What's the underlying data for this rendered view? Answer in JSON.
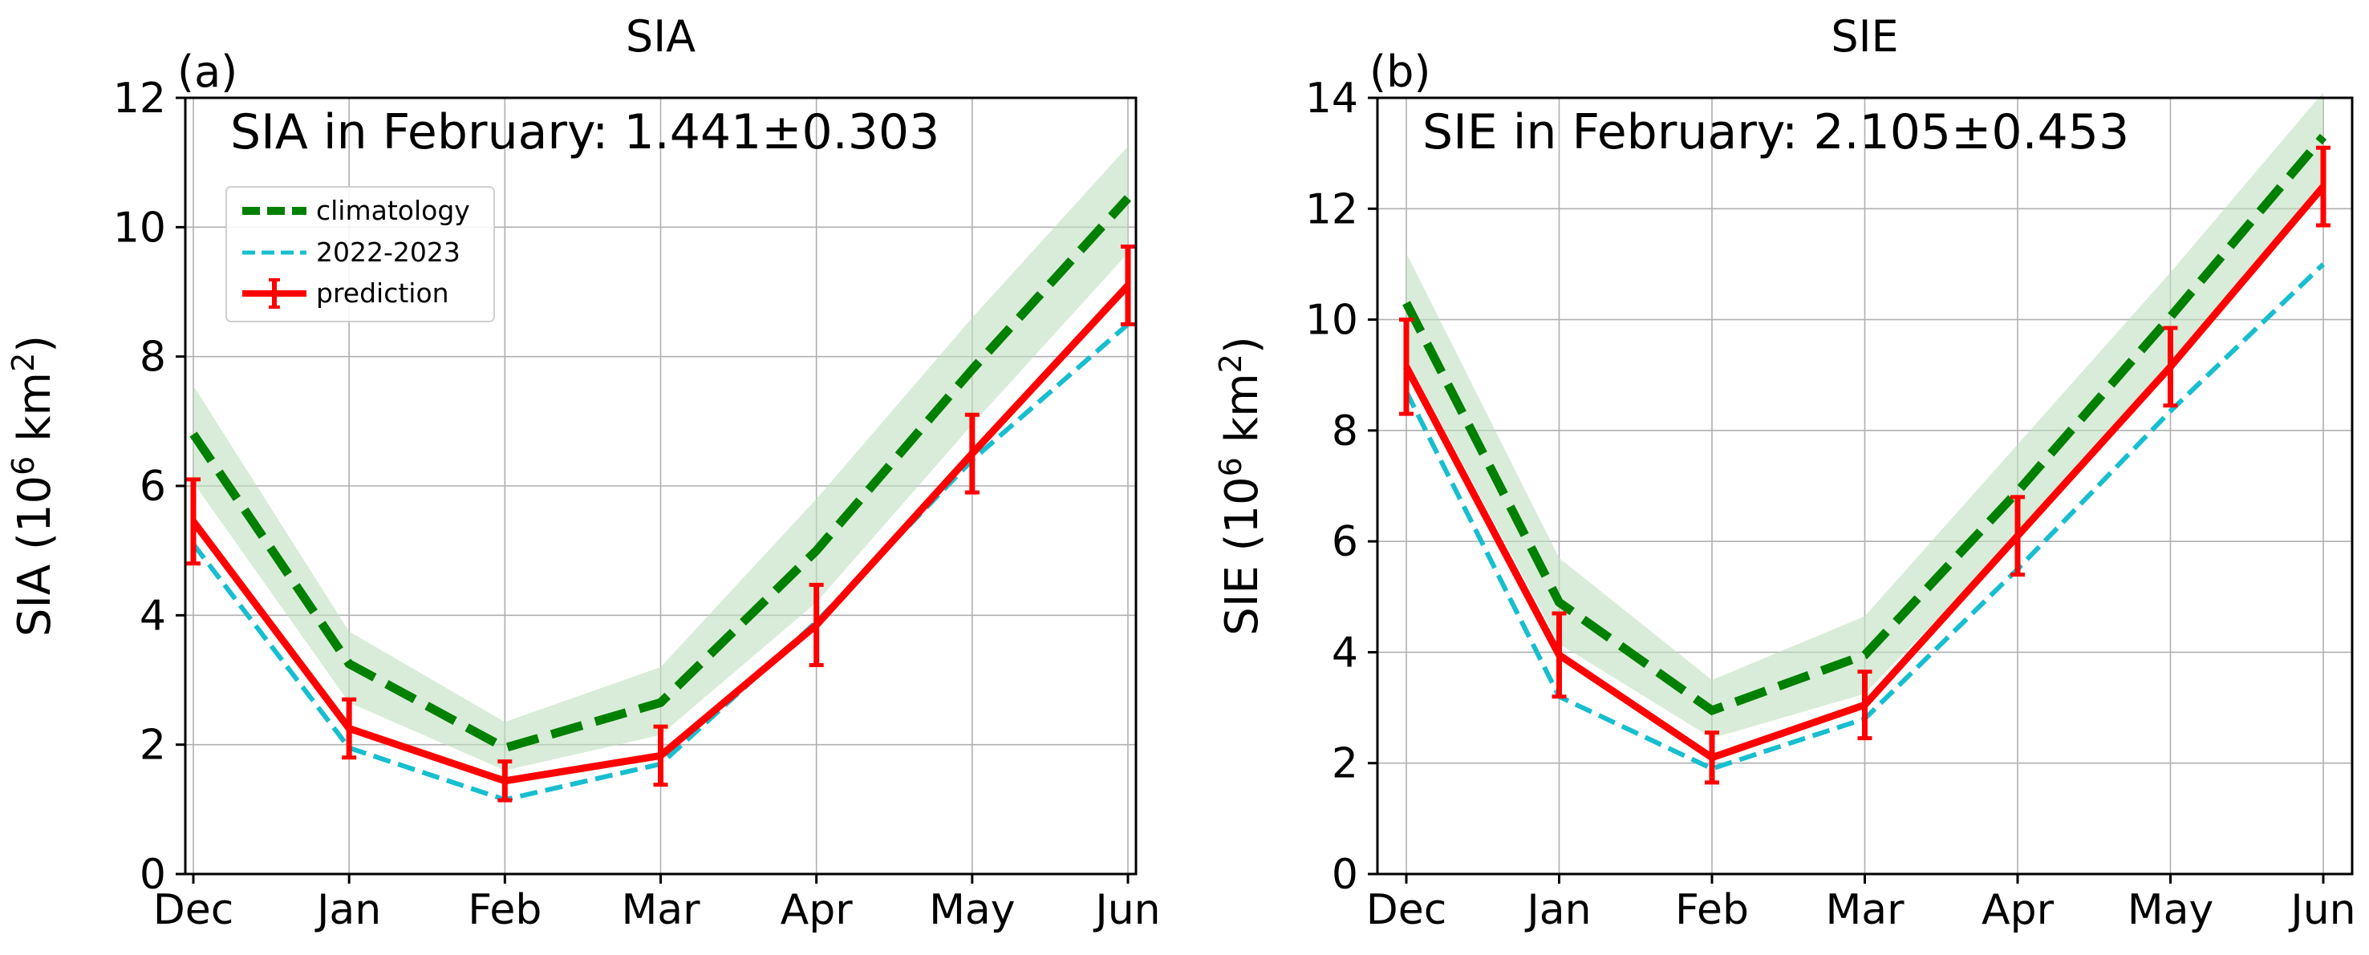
{
  "figure": {
    "months": [
      "Dec",
      "Jan",
      "Feb",
      "Mar",
      "Apr",
      "May",
      "Jun"
    ],
    "legend_labels": [
      "climatology",
      "2022-2023",
      "prediction"
    ],
    "colors": {
      "climatology": "#008000",
      "obs": "#17becf",
      "prediction": "#ff0000",
      "band": "#bfe0bf",
      "grid": "#b0b0b0"
    }
  },
  "chart_data": [
    {
      "type": "line",
      "panel_label": "(a)",
      "title": "SIA",
      "annotation": "SIA in February: 1.441±0.303",
      "ylabel_prefix": "SIA (10",
      "ylabel_sup": "6",
      "ylabel_mid": " km",
      "ylabel_sup2": "2",
      "ylabel_suffix": ")",
      "categories": [
        "Dec",
        "Jan",
        "Feb",
        "Mar",
        "Apr",
        "May",
        "Jun"
      ],
      "ylim": [
        0,
        12
      ],
      "yticks": [
        "0",
        "2",
        "4",
        "6",
        "8",
        "10",
        "12"
      ],
      "grid": true,
      "legend": "upper-left",
      "series": [
        {
          "name": "climatology",
          "style": "dashed-thick",
          "values": [
            6.8,
            3.25,
            1.95,
            2.65,
            5.0,
            7.8,
            10.45
          ],
          "band_lower": [
            6.05,
            2.65,
            1.6,
            2.15,
            4.2,
            6.95,
            9.6
          ],
          "band_upper": [
            7.55,
            3.75,
            2.35,
            3.2,
            5.8,
            8.6,
            11.25
          ]
        },
        {
          "name": "2022-2023",
          "style": "dashed-thin",
          "values": [
            5.1,
            1.95,
            1.15,
            1.7,
            3.9,
            6.4,
            8.5
          ]
        },
        {
          "name": "prediction",
          "style": "solid-errorbar",
          "values": [
            5.45,
            2.25,
            1.44,
            1.83,
            3.85,
            6.5,
            9.1
          ],
          "errors": [
            0.65,
            0.45,
            0.3,
            0.45,
            0.62,
            0.6,
            0.6
          ]
        }
      ]
    },
    {
      "type": "line",
      "panel_label": "(b)",
      "title": "SIE",
      "annotation": "SIE in February: 2.105±0.453",
      "ylabel_prefix": "SIE (10",
      "ylabel_sup": "6",
      "ylabel_mid": " km",
      "ylabel_sup2": "2",
      "ylabel_suffix": ")",
      "categories": [
        "Dec",
        "Jan",
        "Feb",
        "Mar",
        "Apr",
        "May",
        "Jun"
      ],
      "ylim": [
        0,
        14
      ],
      "yticks": [
        "0",
        "2",
        "4",
        "6",
        "8",
        "10",
        "12",
        "14"
      ],
      "grid": true,
      "legend": "none",
      "series": [
        {
          "name": "climatology",
          "style": "dashed-thick",
          "values": [
            10.3,
            4.9,
            2.95,
            3.95,
            6.9,
            10.05,
            13.3
          ],
          "band_lower": [
            9.3,
            4.15,
            2.45,
            3.25,
            6.1,
            9.2,
            12.5
          ],
          "band_upper": [
            11.2,
            5.7,
            3.5,
            4.65,
            7.75,
            10.85,
            14.1
          ]
        },
        {
          "name": "2022-2023",
          "style": "dashed-thin",
          "values": [
            8.7,
            3.2,
            1.9,
            2.8,
            5.5,
            8.35,
            11.0
          ]
        },
        {
          "name": "prediction",
          "style": "solid-errorbar",
          "values": [
            9.15,
            3.95,
            2.1,
            3.05,
            6.1,
            9.15,
            12.4
          ],
          "errors": [
            0.85,
            0.75,
            0.45,
            0.6,
            0.7,
            0.7,
            0.7
          ]
        }
      ]
    }
  ]
}
